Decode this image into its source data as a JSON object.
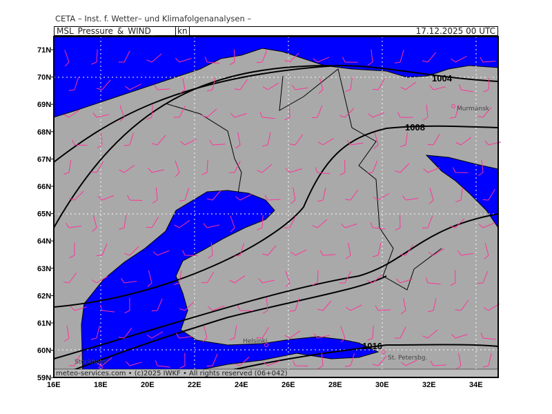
{
  "title": "CETA – Inst. f. Wetter– und Klimafolgenanalysen –",
  "product": "MSL_Pressure_&_WIND_",
  "unit": "kn",
  "datetime": "17.12.2025 00 UTC",
  "copyright": "meteo-services.com • (c)2025 IWKF • All rights reserved (06+042)",
  "lat_labels": [
    "71N",
    "70N",
    "69N",
    "68N",
    "67N",
    "66N",
    "65N",
    "64N",
    "63N",
    "62N",
    "61N",
    "60N",
    "59N"
  ],
  "lon_labels": [
    "16E",
    "18E",
    "20E",
    "22E",
    "24E",
    "26E",
    "28E",
    "30E",
    "32E",
    "34E"
  ],
  "isobar_labels": {
    "a": "1004",
    "b": "1008",
    "c": "1016"
  },
  "cities": {
    "murmansk": "Murmansk",
    "helsinki": "Helsinki",
    "stockholm": "Stockholm",
    "stpetersburg": "St. Petersbg."
  },
  "colors": {
    "sea": "#0000ff",
    "land": "#a9a9a9",
    "wind": "#ff3399",
    "isobar": "#000000"
  }
}
